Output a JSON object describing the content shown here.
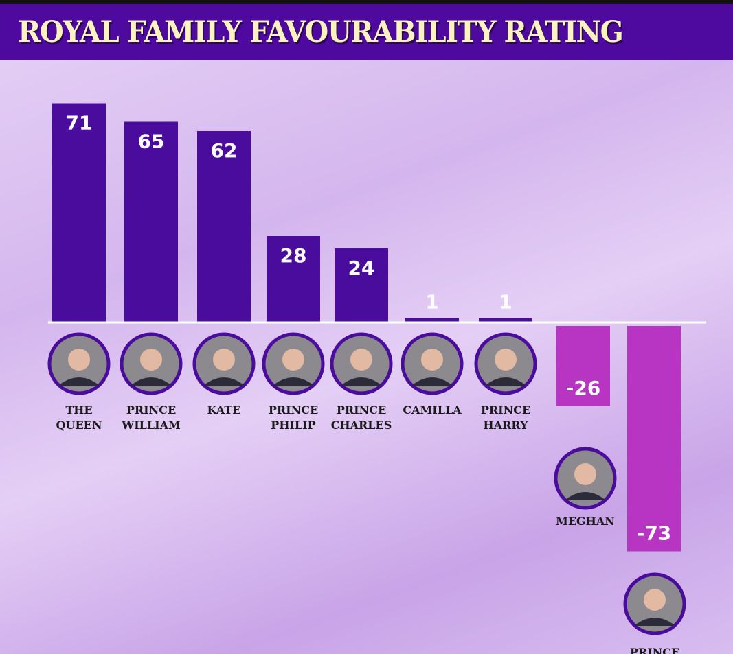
{
  "chart_data": {
    "type": "bar",
    "title": "ROYAL FAMILY FAVOURABILITY RATING",
    "xlabel": "",
    "ylabel": "",
    "categories": [
      [
        "THE",
        "QUEEN"
      ],
      [
        "PRINCE",
        "WILLIAM"
      ],
      [
        "KATE"
      ],
      [
        "PRINCE",
        "PHILIP"
      ],
      [
        "PRINCE",
        "CHARLES"
      ],
      [
        "CAMILLA"
      ],
      [
        "PRINCE",
        "HARRY"
      ],
      [
        "MEGHAN"
      ],
      [
        "PRINCE"
      ]
    ],
    "values": [
      71,
      65,
      62,
      28,
      24,
      1,
      1,
      -26,
      -73
    ],
    "value_labels": [
      "71",
      "65",
      "62",
      "28",
      "24",
      "1",
      "1",
      "-26",
      "-73"
    ],
    "ylim": [
      -80,
      75
    ],
    "grid": false,
    "colors": {
      "positive": "#4a0c9c",
      "negative": "#b735c2",
      "header": "#4e0a9f",
      "title": "#fbf3bf",
      "avatar_ring": "#4a0c9c"
    }
  }
}
